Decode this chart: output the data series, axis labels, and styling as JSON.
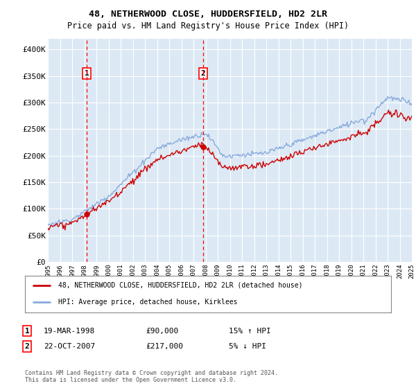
{
  "title": "48, NETHERWOOD CLOSE, HUDDERSFIELD, HD2 2LR",
  "subtitle": "Price paid vs. HM Land Registry's House Price Index (HPI)",
  "sale1_date_label": "19-MAR-1998",
  "sale1_price": 90000,
  "sale1_year": 1998.21,
  "sale1_label": "1",
  "sale1_hpi_pct": "15% ↑ HPI",
  "sale2_date_label": "22-OCT-2007",
  "sale2_price": 217000,
  "sale2_year": 2007.79,
  "sale2_label": "2",
  "sale2_hpi_pct": "5% ↓ HPI",
  "legend_line1": "48, NETHERWOOD CLOSE, HUDDERSFIELD, HD2 2LR (detached house)",
  "legend_line2": "HPI: Average price, detached house, Kirklees",
  "footnote": "Contains HM Land Registry data © Crown copyright and database right 2024.\nThis data is licensed under the Open Government Licence v3.0.",
  "price_line_color": "#cc0000",
  "hpi_line_color": "#88aadd",
  "shade_color": "#dce9f5",
  "background_color": "#dce9f5",
  "grid_color": "#ffffff",
  "ylim": [
    0,
    420000
  ],
  "yticks": [
    0,
    50000,
    100000,
    150000,
    200000,
    250000,
    300000,
    350000,
    400000
  ],
  "xstart": 1995,
  "xend": 2025
}
